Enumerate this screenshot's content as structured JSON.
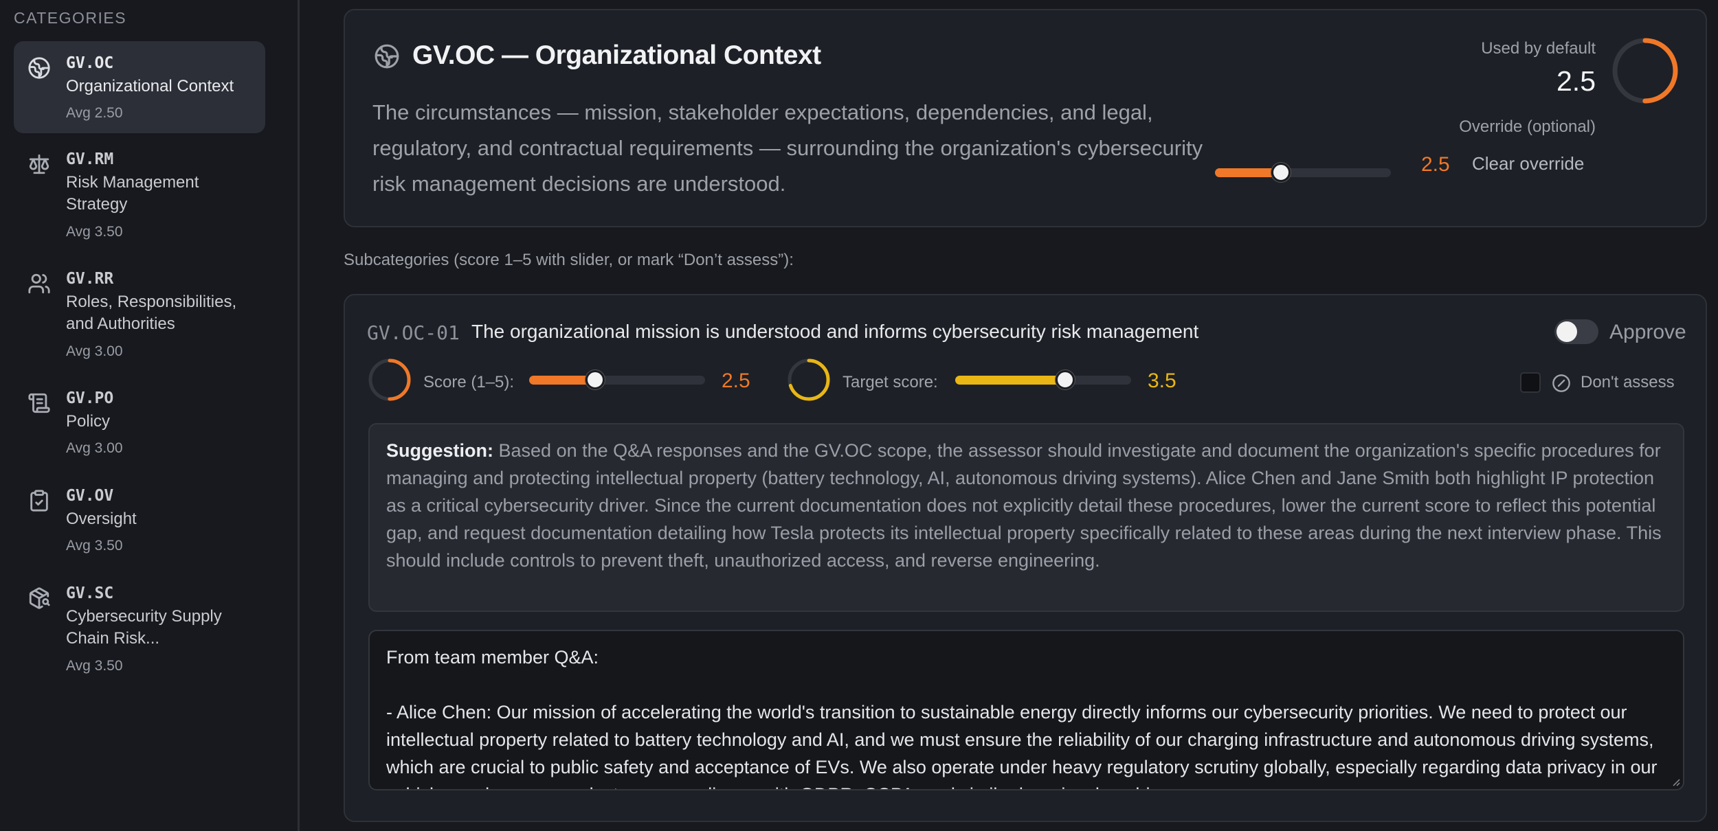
{
  "sidebar": {
    "title": "CATEGORIES",
    "items": [
      {
        "code": "GV.OC",
        "name": "Organizational Context",
        "avg": "Avg 2.50"
      },
      {
        "code": "GV.RM",
        "name": "Risk Management Strategy",
        "avg": "Avg 3.50"
      },
      {
        "code": "GV.RR",
        "name": "Roles, Responsibilities, and Authorities",
        "avg": "Avg 3.00"
      },
      {
        "code": "GV.PO",
        "name": "Policy",
        "avg": "Avg 3.00"
      },
      {
        "code": "GV.OV",
        "name": "Oversight",
        "avg": "Avg 3.50"
      },
      {
        "code": "GV.SC",
        "name": "Cybersecurity Supply Chain Risk...",
        "avg": "Avg 3.50"
      }
    ],
    "active_index": 0,
    "icons": [
      "globe-icon",
      "scale-icon",
      "users-icon",
      "scroll-icon",
      "clipboard-check-icon",
      "package-search-icon"
    ]
  },
  "header": {
    "title": "GV.OC — Organizational Context",
    "description": "The circumstances — mission, stakeholder expectations, dependencies, and legal, regulatory, and contractual requirements — surrounding the organization's cybersecurity risk management decisions are understood.",
    "used_by_default_label": "Used by default",
    "used_by_default_value": "2.5",
    "override_label": "Override (optional)",
    "override_value": "2.5",
    "override_score": 2.5,
    "clear_override": "Clear override",
    "ring_fraction": 0.5
  },
  "subcategories_label": "Subcategories (score 1–5 with slider, or mark “Don’t assess”):",
  "subcategory": {
    "code": "GV.OC-01",
    "title": "The organizational mission is understood and informs cybersecurity risk management",
    "approve_label": "Approve",
    "approved": false,
    "score_label": "Score (1–5):",
    "score_value": "2.5",
    "score": 2.5,
    "target_label": "Target score:",
    "target_value": "3.5",
    "target": 3.5,
    "dont_assess_label": "Don't assess",
    "dont_assess": false,
    "suggestion_label": "Suggestion:",
    "suggestion_text": "Based on the Q&A responses and the GV.OC scope, the assessor should investigate and document the organization's specific procedures for managing and protecting intellectual property (battery technology, AI, autonomous driving systems). Alice Chen and Jane Smith both highlight IP protection as a critical cybersecurity driver. Since the current documentation does not explicitly detail these procedures, lower the current score to reflect this potential gap, and request documentation detailing how Tesla protects its intellectual property specifically related to these areas during the next interview phase. This should include controls to prevent theft, unauthorized access, and reverse engineering.",
    "qa_text": "From team member Q&A:\n\n- Alice Chen: Our mission of accelerating the world's transition to sustainable energy directly informs our cybersecurity priorities. We need to protect our intellectual property related to battery technology and AI, and we must ensure the reliability of our charging infrastructure and autonomous driving systems, which are crucial to public safety and acceptance of EVs. We also operate under heavy regulatory scrutiny globally, especially regarding data privacy in our vehicles and energy products, so compliance with GDPR, CCPA, and similar laws is a key driver."
  },
  "colors": {
    "orange": "#f07828",
    "yellow": "#e9b616",
    "background": "#17191e",
    "card": "#1d2026"
  }
}
